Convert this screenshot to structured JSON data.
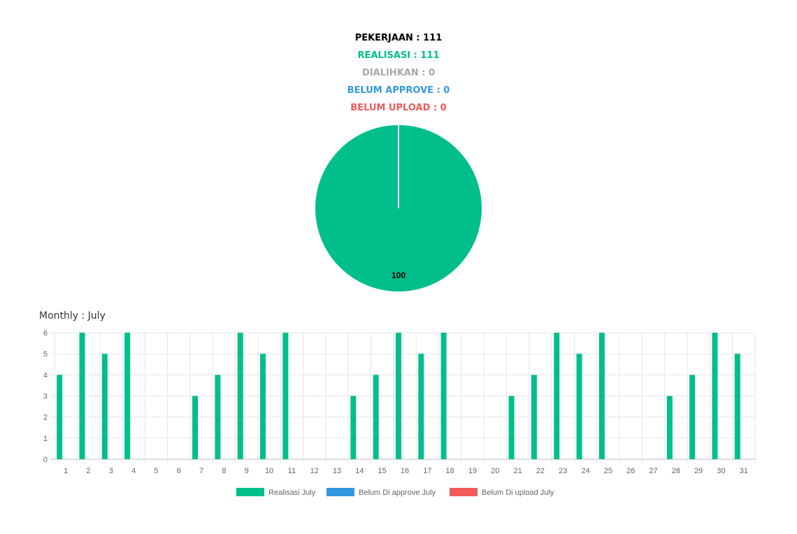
{
  "summary": {
    "pekerjaan": "PEKERJAAN : 111",
    "realisasi": "REALISASI : 111",
    "dialihkan": "DIALIHKAN : 0",
    "belum_approve": "BELUM APPROVE : 0",
    "belum_upload": "BELUM UPLOAD : 0"
  },
  "colors": {
    "pekerjaan": "#000000",
    "realisasi": "#00bf8a",
    "dialihkan": "#a8a8a8",
    "belum_approve": "#3399dd",
    "belum_upload": "#f05a5a"
  },
  "monthly_title": "Monthly : July",
  "chart_data": [
    {
      "type": "pie",
      "slices": [
        {
          "value": 100,
          "label": "100",
          "color": "#00bf8a"
        }
      ]
    },
    {
      "type": "bar",
      "categories": [
        "1",
        "2",
        "3",
        "4",
        "5",
        "6",
        "7",
        "8",
        "9",
        "10",
        "11",
        "12",
        "13",
        "14",
        "15",
        "16",
        "17",
        "18",
        "19",
        "20",
        "21",
        "22",
        "23",
        "24",
        "25",
        "26",
        "27",
        "28",
        "29",
        "30",
        "31"
      ],
      "series": [
        {
          "name": "Realisasi July",
          "color": "#00bf8a",
          "values": [
            4,
            6,
            5,
            6,
            0,
            0,
            3,
            4,
            6,
            5,
            6,
            0,
            0,
            3,
            4,
            6,
            5,
            6,
            0,
            0,
            3,
            4,
            6,
            5,
            6,
            0,
            0,
            3,
            4,
            6,
            5
          ]
        },
        {
          "name": "Belum Di approve July",
          "color": "#3399dd",
          "values": [
            0,
            0,
            0,
            0,
            0,
            0,
            0,
            0,
            0,
            0,
            0,
            0,
            0,
            0,
            0,
            0,
            0,
            0,
            0,
            0,
            0,
            0,
            0,
            0,
            0,
            0,
            0,
            0,
            0,
            0,
            0
          ]
        },
        {
          "name": "Belum Di upload July",
          "color": "#f05a5a",
          "values": [
            0,
            0,
            0,
            0,
            0,
            0,
            0,
            0,
            0,
            0,
            0,
            0,
            0,
            0,
            0,
            0,
            0,
            0,
            0,
            0,
            0,
            0,
            0,
            0,
            0,
            0,
            0,
            0,
            0,
            0,
            0
          ]
        }
      ],
      "ylim": [
        0,
        6
      ],
      "yticks": [
        "0",
        "1",
        "2",
        "3",
        "4",
        "5",
        "6"
      ],
      "grid": true,
      "legend": "bottom"
    }
  ]
}
